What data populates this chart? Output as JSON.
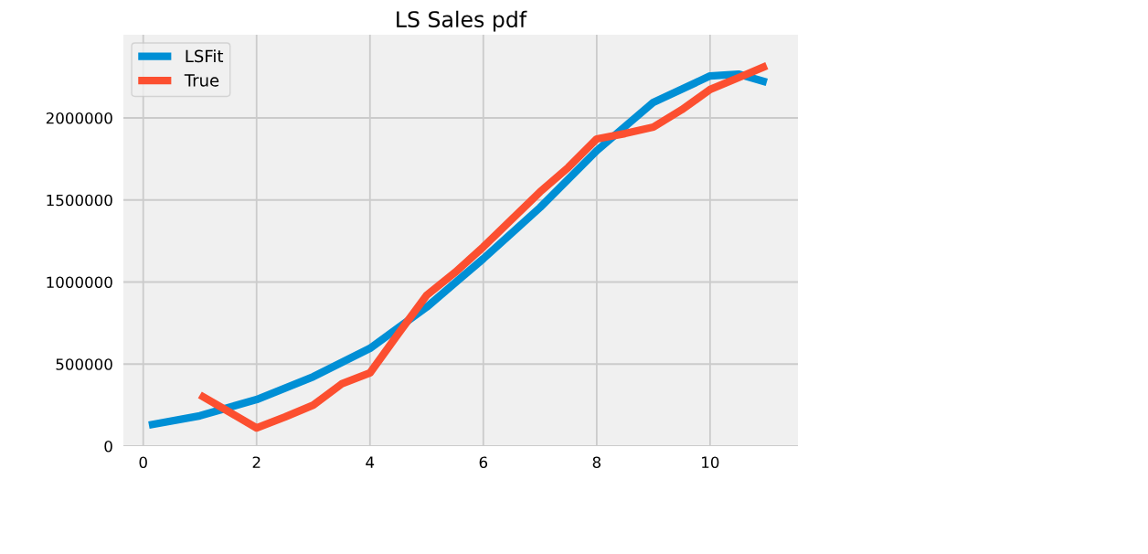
{
  "chart_data": {
    "type": "line",
    "title": "LS Sales pdf",
    "legend": "top left",
    "grid": true,
    "line_style": "solid",
    "xlim": [
      -0.35,
      11.55
    ],
    "ylim": [
      0,
      2507000
    ],
    "xticks": [
      0,
      2,
      4,
      6,
      8,
      10
    ],
    "yticks": [
      0,
      500000,
      1000000,
      1500000,
      2000000
    ],
    "series": [
      {
        "name": "LSFit",
        "color": "#008fd5",
        "x": [
          0.1,
          1,
          2,
          3,
          4,
          5,
          6,
          7,
          8,
          9,
          10,
          10.5,
          11
        ],
        "values": [
          128000,
          185000,
          284000,
          423000,
          596000,
          847000,
          1142000,
          1454000,
          1800000,
          2095000,
          2256000,
          2267000,
          2217000
        ]
      },
      {
        "name": "True",
        "color": "#fc4f30",
        "x": [
          1,
          2,
          2.5,
          3,
          3.5,
          4,
          4.5,
          5,
          5.5,
          6,
          6.5,
          7,
          7.5,
          8,
          8.5,
          9,
          9.5,
          10,
          10.5,
          11
        ],
        "values": [
          312000,
          111000,
          178000,
          250000,
          379000,
          446000,
          685000,
          919000,
          1058000,
          1214000,
          1382000,
          1549000,
          1699000,
          1872000,
          1905000,
          1944000,
          2050000,
          2173000,
          2245000,
          2318000
        ]
      }
    ]
  }
}
